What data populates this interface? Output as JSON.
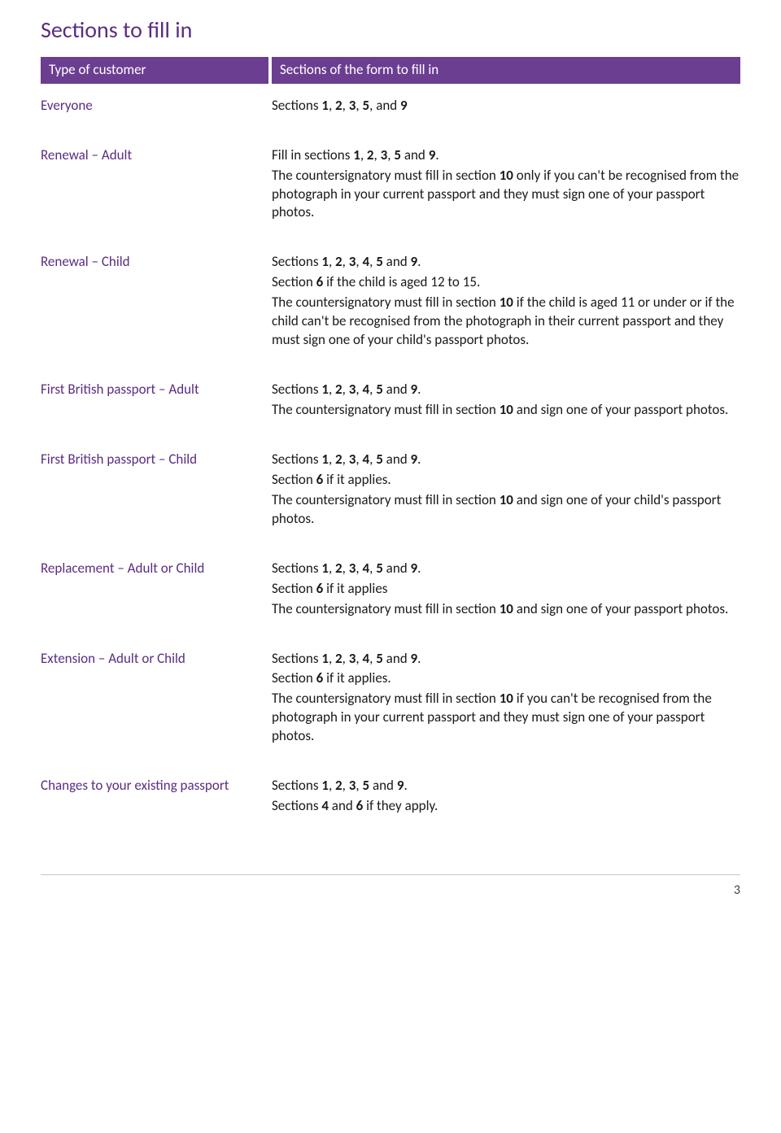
{
  "colors": {
    "purple_text": "#5a2d82",
    "header_bg": "#6b3e91",
    "header_text": "#ffffff",
    "body_text": "#1a1a1a",
    "footer_border": "#c8c8c8"
  },
  "title": "Sections to fill in",
  "header": {
    "left": "Type of customer",
    "right": "Sections of the form to fill in"
  },
  "rows": [
    {
      "left": "Everyone",
      "right": [
        {
          "parts": [
            {
              "t": "Sections "
            },
            {
              "t": "1",
              "b": true
            },
            {
              "t": ", "
            },
            {
              "t": "2",
              "b": true
            },
            {
              "t": ", "
            },
            {
              "t": "3",
              "b": true
            },
            {
              "t": ", "
            },
            {
              "t": "5",
              "b": true
            },
            {
              "t": ", and "
            },
            {
              "t": "9",
              "b": true
            }
          ]
        }
      ]
    },
    {
      "left": "Renewal – Adult",
      "right": [
        {
          "parts": [
            {
              "t": "Fill in sections "
            },
            {
              "t": "1",
              "b": true
            },
            {
              "t": ", "
            },
            {
              "t": "2",
              "b": true
            },
            {
              "t": ", "
            },
            {
              "t": "3",
              "b": true
            },
            {
              "t": ", "
            },
            {
              "t": "5",
              "b": true
            },
            {
              "t": " and "
            },
            {
              "t": "9",
              "b": true
            },
            {
              "t": "."
            }
          ]
        },
        {
          "parts": [
            {
              "t": "The countersignatory must fill in section "
            },
            {
              "t": "10",
              "b": true
            },
            {
              "t": " only if you can't be recognised from the photograph in your current passport and they must sign one of your passport photos."
            }
          ]
        }
      ]
    },
    {
      "left": "Renewal – Child",
      "right": [
        {
          "parts": [
            {
              "t": "Sections "
            },
            {
              "t": "1",
              "b": true
            },
            {
              "t": ", "
            },
            {
              "t": "2",
              "b": true
            },
            {
              "t": ", "
            },
            {
              "t": "3",
              "b": true
            },
            {
              "t": ", "
            },
            {
              "t": "4",
              "b": true
            },
            {
              "t": ", "
            },
            {
              "t": "5",
              "b": true
            },
            {
              "t": " and "
            },
            {
              "t": "9",
              "b": true
            },
            {
              "t": "."
            }
          ]
        },
        {
          "parts": [
            {
              "t": "Section "
            },
            {
              "t": "6",
              "b": true
            },
            {
              "t": " if the child is aged 12 to 15."
            }
          ]
        },
        {
          "parts": [
            {
              "t": "The countersignatory must fill in section "
            },
            {
              "t": "10",
              "b": true
            },
            {
              "t": " if the child is aged 11 or under or if the child can't be recognised from the photograph in their current passport and they must sign one of your child's passport photos."
            }
          ]
        }
      ]
    },
    {
      "left": "First British passport – Adult",
      "right": [
        {
          "parts": [
            {
              "t": "Sections "
            },
            {
              "t": "1",
              "b": true
            },
            {
              "t": ", "
            },
            {
              "t": "2",
              "b": true
            },
            {
              "t": ", "
            },
            {
              "t": "3",
              "b": true
            },
            {
              "t": ", "
            },
            {
              "t": "4",
              "b": true
            },
            {
              "t": ", "
            },
            {
              "t": "5",
              "b": true
            },
            {
              "t": " and "
            },
            {
              "t": "9",
              "b": true
            },
            {
              "t": "."
            }
          ]
        },
        {
          "parts": [
            {
              "t": "The countersignatory must fill in section "
            },
            {
              "t": "10",
              "b": true
            },
            {
              "t": " and sign one of your passport photos."
            }
          ]
        }
      ]
    },
    {
      "left": "First British passport – Child",
      "right": [
        {
          "parts": [
            {
              "t": "Sections "
            },
            {
              "t": "1",
              "b": true
            },
            {
              "t": ", "
            },
            {
              "t": "2",
              "b": true
            },
            {
              "t": ", "
            },
            {
              "t": "3",
              "b": true
            },
            {
              "t": ", "
            },
            {
              "t": "4",
              "b": true
            },
            {
              "t": ", "
            },
            {
              "t": "5",
              "b": true
            },
            {
              "t": " and "
            },
            {
              "t": "9",
              "b": true
            },
            {
              "t": "."
            }
          ]
        },
        {
          "parts": [
            {
              "t": "Section "
            },
            {
              "t": "6",
              "b": true
            },
            {
              "t": " if it applies."
            }
          ]
        },
        {
          "parts": [
            {
              "t": "The countersignatory must fill in section "
            },
            {
              "t": "10",
              "b": true
            },
            {
              "t": " and sign one of your child's passport photos."
            }
          ]
        }
      ]
    },
    {
      "left": "Replacement – Adult or Child",
      "right": [
        {
          "parts": [
            {
              "t": "Sections "
            },
            {
              "t": "1",
              "b": true
            },
            {
              "t": ", "
            },
            {
              "t": "2",
              "b": true
            },
            {
              "t": ", "
            },
            {
              "t": "3",
              "b": true
            },
            {
              "t": ", "
            },
            {
              "t": "4",
              "b": true
            },
            {
              "t": ", "
            },
            {
              "t": "5",
              "b": true
            },
            {
              "t": " and "
            },
            {
              "t": "9",
              "b": true
            },
            {
              "t": "."
            }
          ]
        },
        {
          "parts": [
            {
              "t": "Section "
            },
            {
              "t": "6",
              "b": true
            },
            {
              "t": " if it applies"
            }
          ]
        },
        {
          "parts": [
            {
              "t": "The countersignatory must fill in section "
            },
            {
              "t": "10",
              "b": true
            },
            {
              "t": " and sign one of your passport photos."
            }
          ]
        }
      ]
    },
    {
      "left": "Extension – Adult or Child",
      "right": [
        {
          "parts": [
            {
              "t": "Sections "
            },
            {
              "t": "1",
              "b": true
            },
            {
              "t": ", "
            },
            {
              "t": "2",
              "b": true
            },
            {
              "t": ", "
            },
            {
              "t": "3",
              "b": true
            },
            {
              "t": ", "
            },
            {
              "t": "4",
              "b": true
            },
            {
              "t": ", "
            },
            {
              "t": "5",
              "b": true
            },
            {
              "t": " and "
            },
            {
              "t": "9",
              "b": true
            },
            {
              "t": "."
            }
          ]
        },
        {
          "parts": [
            {
              "t": "Section "
            },
            {
              "t": "6",
              "b": true
            },
            {
              "t": " if it applies."
            }
          ]
        },
        {
          "parts": [
            {
              "t": "The countersignatory must fill in section "
            },
            {
              "t": "10",
              "b": true
            },
            {
              "t": " if you can't be recognised from the photograph in your current passport and they must sign one of your passport photos."
            }
          ]
        }
      ]
    },
    {
      "left": "Changes to your existing passport",
      "right": [
        {
          "parts": [
            {
              "t": "Sections "
            },
            {
              "t": "1",
              "b": true
            },
            {
              "t": ", "
            },
            {
              "t": "2",
              "b": true
            },
            {
              "t": ", "
            },
            {
              "t": "3",
              "b": true
            },
            {
              "t": ", "
            },
            {
              "t": "5",
              "b": true
            },
            {
              "t": " and "
            },
            {
              "t": "9",
              "b": true
            },
            {
              "t": "."
            }
          ]
        },
        {
          "parts": [
            {
              "t": "Sections "
            },
            {
              "t": "4",
              "b": true
            },
            {
              "t": " and "
            },
            {
              "t": "6",
              "b": true
            },
            {
              "t": " if they apply."
            }
          ]
        }
      ]
    }
  ],
  "page_number": "3"
}
